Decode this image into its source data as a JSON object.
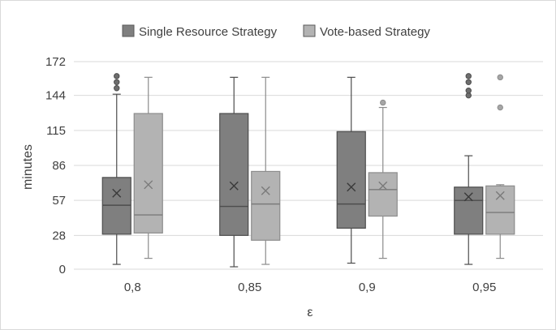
{
  "chart_data": {
    "type": "box",
    "categories": [
      "0,8",
      "0,85",
      "0,9",
      "0,95"
    ],
    "xlabel": "ε",
    "ylabel": "minutes",
    "ylim": [
      0,
      172
    ],
    "yticks": [
      0,
      28,
      57,
      86,
      115,
      144,
      172
    ],
    "ytick_labels": [
      "0",
      "28",
      "57",
      "86",
      "115",
      "144",
      "172"
    ],
    "grid": true,
    "legend_position": "top",
    "series": [
      {
        "name": "Single Resource Strategy",
        "color": "#7f7f7f",
        "boxes": [
          {
            "whisker_low": 4,
            "q1": 29,
            "median": 53,
            "q3": 76,
            "whisker_high": 145,
            "mean": 63,
            "outliers": [
              150,
              155,
              160
            ]
          },
          {
            "whisker_low": 2,
            "q1": 28,
            "median": 52,
            "q3": 129,
            "whisker_high": 159,
            "mean": 69,
            "outliers": []
          },
          {
            "whisker_low": 5,
            "q1": 34,
            "median": 54,
            "q3": 114,
            "whisker_high": 159,
            "mean": 68,
            "outliers": []
          },
          {
            "whisker_low": 4,
            "q1": 29,
            "median": 57,
            "q3": 68,
            "whisker_high": 94,
            "mean": 60,
            "outliers": [
              144,
              148,
              155,
              160
            ]
          }
        ]
      },
      {
        "name": "Vote-based Strategy",
        "color": "#b3b3b3",
        "boxes": [
          {
            "whisker_low": 9,
            "q1": 30,
            "median": 45,
            "q3": 129,
            "whisker_high": 159,
            "mean": 70,
            "outliers": []
          },
          {
            "whisker_low": 4,
            "q1": 24,
            "median": 54,
            "q3": 81,
            "whisker_high": 159,
            "mean": 65,
            "outliers": []
          },
          {
            "whisker_low": 9,
            "q1": 44,
            "median": 66,
            "q3": 80,
            "whisker_high": 134,
            "mean": 69,
            "outliers": [
              138
            ]
          },
          {
            "whisker_low": 9,
            "q1": 29,
            "median": 47,
            "q3": 69,
            "whisker_high": 70,
            "mean": 61,
            "outliers": [
              134,
              159
            ]
          }
        ]
      }
    ]
  }
}
